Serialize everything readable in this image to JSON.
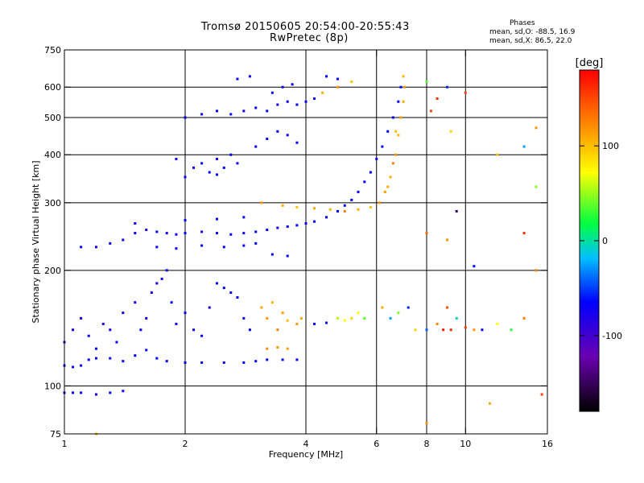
{
  "header": {
    "title": "Tromsø 20150605 20:54:00-20:55:43",
    "subtitle": "RwPretec (8p)"
  },
  "stats": {
    "title": "Phases",
    "line_o": "mean, sd,O: -88.5, 16.9",
    "line_x": "mean, sd,X:  86.5, 22.0"
  },
  "chart_data": {
    "type": "scatter",
    "title": "Tromsø 20150605 20:54:00-20:55:43",
    "subtitle": "RwPretec (8p)",
    "xlabel": "Frequency [MHz]",
    "ylabel": "Stationary phase Virtual Height [km]",
    "xscale": "log",
    "yscale": "log",
    "xlim": [
      1,
      16
    ],
    "ylim": [
      75,
      750
    ],
    "xticks": [
      1,
      2,
      4,
      6,
      8,
      10,
      16
    ],
    "yticks": [
      75,
      100,
      200,
      300,
      400,
      500,
      600,
      750
    ],
    "grid": true,
    "colorbar": {
      "label": "[deg]",
      "range": [
        -180,
        180
      ],
      "ticks": [
        -100,
        0,
        100
      ],
      "colors": [
        "#000000",
        "#6a00b0",
        "#0000ff",
        "#00c0ff",
        "#00ff40",
        "#ffff00",
        "#ff8000",
        "#ff0000"
      ]
    },
    "series": [
      {
        "points": [
          [
            1.0,
            96,
            -95
          ],
          [
            1.05,
            96,
            -90
          ],
          [
            1.1,
            96,
            -92
          ],
          [
            1.2,
            95,
            -98
          ],
          [
            1.3,
            96,
            -90
          ],
          [
            1.4,
            97,
            -88
          ],
          [
            1.0,
            113,
            -90
          ],
          [
            1.05,
            112,
            -92
          ],
          [
            1.1,
            113,
            -88
          ],
          [
            1.15,
            117,
            -95
          ],
          [
            1.2,
            118,
            -90
          ],
          [
            1.3,
            118,
            -88
          ],
          [
            1.4,
            116,
            -92
          ],
          [
            1.5,
            120,
            -90
          ],
          [
            1.6,
            124,
            -86
          ],
          [
            1.7,
            118,
            -90
          ],
          [
            1.8,
            116,
            -92
          ],
          [
            2.0,
            115,
            -88
          ],
          [
            2.2,
            115,
            -90
          ],
          [
            2.5,
            115,
            -92
          ],
          [
            2.8,
            115,
            -90
          ],
          [
            3.0,
            116,
            -88
          ],
          [
            3.2,
            117,
            -90
          ],
          [
            3.5,
            117,
            -86
          ],
          [
            3.8,
            117,
            -90
          ],
          [
            1.0,
            130,
            -100
          ],
          [
            1.05,
            140,
            -95
          ],
          [
            1.1,
            150,
            -92
          ],
          [
            1.15,
            135,
            -98
          ],
          [
            1.2,
            125,
            -90
          ],
          [
            1.25,
            145,
            -100
          ],
          [
            1.3,
            140,
            -92
          ],
          [
            1.35,
            130,
            -95
          ],
          [
            1.4,
            155,
            -90
          ],
          [
            1.5,
            165,
            -98
          ],
          [
            1.55,
            140,
            -90
          ],
          [
            1.6,
            150,
            -95
          ],
          [
            1.65,
            175,
            -92
          ],
          [
            1.7,
            185,
            -98
          ],
          [
            1.75,
            190,
            -95
          ],
          [
            1.8,
            200,
            -92
          ],
          [
            1.85,
            165,
            -90
          ],
          [
            1.9,
            145,
            -95
          ],
          [
            2.0,
            155,
            -92
          ],
          [
            2.1,
            140,
            -95
          ],
          [
            2.2,
            135,
            -90
          ],
          [
            2.3,
            160,
            -98
          ],
          [
            2.4,
            185,
            -92
          ],
          [
            2.5,
            180,
            -90
          ],
          [
            2.6,
            175,
            -95
          ],
          [
            2.7,
            170,
            -92
          ],
          [
            2.8,
            150,
            -95
          ],
          [
            2.9,
            140,
            -90
          ],
          [
            3.1,
            160,
            100
          ],
          [
            3.2,
            150,
            110
          ],
          [
            3.3,
            165,
            95
          ],
          [
            3.4,
            140,
            120
          ],
          [
            3.5,
            155,
            105
          ],
          [
            3.6,
            148,
            90
          ],
          [
            3.8,
            145,
            110
          ],
          [
            3.9,
            150,
            100
          ],
          [
            3.2,
            125,
            115
          ],
          [
            3.4,
            126,
            110
          ],
          [
            3.6,
            125,
            105
          ],
          [
            4.2,
            145,
            -90
          ],
          [
            4.5,
            146,
            -85
          ],
          [
            4.8,
            150,
            40
          ],
          [
            5.0,
            148,
            60
          ],
          [
            5.2,
            150,
            80
          ],
          [
            5.4,
            155,
            60
          ],
          [
            5.6,
            150,
            20
          ],
          [
            6.2,
            160,
            100
          ],
          [
            6.5,
            150,
            -40
          ],
          [
            6.8,
            155,
            30
          ],
          [
            7.2,
            160,
            -80
          ],
          [
            7.5,
            140,
            80
          ],
          [
            8.0,
            140,
            -60
          ],
          [
            8.5,
            145,
            120
          ],
          [
            9.0,
            160,
            140
          ],
          [
            9.5,
            150,
            -20
          ],
          [
            10.0,
            142,
            150
          ],
          [
            10.5,
            140,
            110
          ],
          [
            11.0,
            140,
            -90
          ],
          [
            12.0,
            145,
            60
          ],
          [
            13.0,
            140,
            10
          ],
          [
            14.0,
            150,
            120
          ],
          [
            8.8,
            140,
            170
          ],
          [
            9.2,
            140,
            160
          ],
          [
            1.1,
            230,
            -90
          ],
          [
            1.2,
            230,
            -92
          ],
          [
            1.3,
            235,
            -95
          ],
          [
            1.4,
            240,
            -90
          ],
          [
            1.5,
            250,
            -92
          ],
          [
            1.6,
            255,
            -98
          ],
          [
            1.7,
            252,
            -90
          ],
          [
            1.8,
            250,
            -95
          ],
          [
            1.9,
            248,
            -92
          ],
          [
            2.0,
            250,
            -90
          ],
          [
            2.2,
            252,
            -95
          ],
          [
            2.4,
            250,
            -92
          ],
          [
            2.6,
            248,
            -90
          ],
          [
            2.8,
            250,
            -95
          ],
          [
            3.0,
            252,
            -92
          ],
          [
            3.2,
            255,
            -90
          ],
          [
            3.4,
            258,
            -95
          ],
          [
            3.6,
            260,
            -92
          ],
          [
            3.8,
            262,
            -90
          ],
          [
            4.0,
            265,
            -95
          ],
          [
            4.2,
            268,
            -92
          ],
          [
            4.5,
            275,
            -90
          ],
          [
            4.8,
            285,
            -95
          ],
          [
            5.0,
            295,
            -92
          ],
          [
            5.2,
            305,
            -90
          ],
          [
            5.4,
            320,
            -95
          ],
          [
            5.6,
            340,
            -92
          ],
          [
            5.8,
            360,
            -90
          ],
          [
            6.0,
            390,
            -95
          ],
          [
            6.2,
            420,
            -92
          ],
          [
            6.4,
            460,
            -90
          ],
          [
            6.6,
            500,
            -95
          ],
          [
            6.8,
            550,
            -92
          ],
          [
            6.9,
            600,
            -90
          ],
          [
            1.7,
            230,
            -92
          ],
          [
            1.9,
            228,
            -95
          ],
          [
            2.2,
            232,
            -90
          ],
          [
            2.5,
            230,
            -92
          ],
          [
            2.8,
            232,
            -95
          ],
          [
            3.0,
            235,
            -90
          ],
          [
            1.5,
            265,
            -95
          ],
          [
            2.0,
            270,
            -92
          ],
          [
            2.4,
            272,
            -90
          ],
          [
            2.8,
            275,
            -95
          ],
          [
            3.3,
            220,
            -90
          ],
          [
            3.6,
            218,
            -92
          ],
          [
            3.1,
            300,
            110
          ],
          [
            3.5,
            295,
            100
          ],
          [
            3.8,
            292,
            90
          ],
          [
            4.2,
            290,
            105
          ],
          [
            4.6,
            288,
            95
          ],
          [
            5.0,
            285,
            120
          ],
          [
            5.4,
            288,
            100
          ],
          [
            5.8,
            292,
            90
          ],
          [
            6.1,
            300,
            110
          ],
          [
            6.3,
            320,
            105
          ],
          [
            6.5,
            350,
            100
          ],
          [
            6.7,
            400,
            110
          ],
          [
            6.8,
            450,
            95
          ],
          [
            6.9,
            500,
            105
          ],
          [
            7.0,
            550,
            100
          ],
          [
            7.05,
            600,
            110
          ],
          [
            7.0,
            640,
            95
          ],
          [
            6.6,
            380,
            120
          ],
          [
            6.4,
            330,
            100
          ],
          [
            6.7,
            460,
            90
          ],
          [
            2.0,
            350,
            -92
          ],
          [
            2.1,
            370,
            -95
          ],
          [
            2.2,
            380,
            -90
          ],
          [
            2.3,
            360,
            -92
          ],
          [
            2.4,
            390,
            -95
          ],
          [
            2.5,
            370,
            -90
          ],
          [
            2.6,
            400,
            -92
          ],
          [
            2.7,
            380,
            -95
          ],
          [
            2.4,
            355,
            -90
          ],
          [
            1.9,
            390,
            -92
          ],
          [
            3.0,
            420,
            -95
          ],
          [
            3.2,
            440,
            -92
          ],
          [
            3.4,
            460,
            -90
          ],
          [
            3.6,
            450,
            -95
          ],
          [
            3.8,
            430,
            -92
          ],
          [
            2.0,
            500,
            -92
          ],
          [
            2.2,
            510,
            -95
          ],
          [
            2.4,
            520,
            -90
          ],
          [
            2.6,
            510,
            -92
          ],
          [
            2.8,
            520,
            -95
          ],
          [
            3.0,
            530,
            -92
          ],
          [
            3.2,
            520,
            -90
          ],
          [
            3.4,
            540,
            -95
          ],
          [
            3.6,
            550,
            -92
          ],
          [
            3.8,
            540,
            -90
          ],
          [
            4.0,
            550,
            -95
          ],
          [
            4.2,
            560,
            -92
          ],
          [
            4.4,
            580,
            100
          ],
          [
            4.8,
            600,
            110
          ],
          [
            5.2,
            620,
            90
          ],
          [
            3.3,
            580,
            -92
          ],
          [
            3.5,
            600,
            -95
          ],
          [
            3.7,
            610,
            -90
          ],
          [
            2.7,
            630,
            -92
          ],
          [
            2.9,
            640,
            -95
          ],
          [
            4.5,
            640,
            -90
          ],
          [
            4.8,
            630,
            -92
          ],
          [
            8.0,
            620,
            20
          ],
          [
            9.0,
            600,
            -80
          ],
          [
            10.0,
            580,
            150
          ],
          [
            12.0,
            400,
            90
          ],
          [
            14.0,
            420,
            -40
          ],
          [
            15.0,
            470,
            110
          ],
          [
            8.5,
            560,
            160
          ],
          [
            9.5,
            285,
            -150
          ],
          [
            10.5,
            205,
            -90
          ],
          [
            14.0,
            250,
            160
          ],
          [
            15.0,
            330,
            30
          ],
          [
            8.2,
            520,
            150
          ],
          [
            9.2,
            460,
            80
          ],
          [
            8.0,
            250,
            130
          ],
          [
            9.0,
            240,
            110
          ],
          [
            15.0,
            200,
            120
          ],
          [
            15.5,
            95,
            150
          ],
          [
            8.0,
            80,
            110
          ],
          [
            1.2,
            75,
            100
          ],
          [
            11.5,
            90,
            100
          ]
        ]
      }
    ]
  }
}
